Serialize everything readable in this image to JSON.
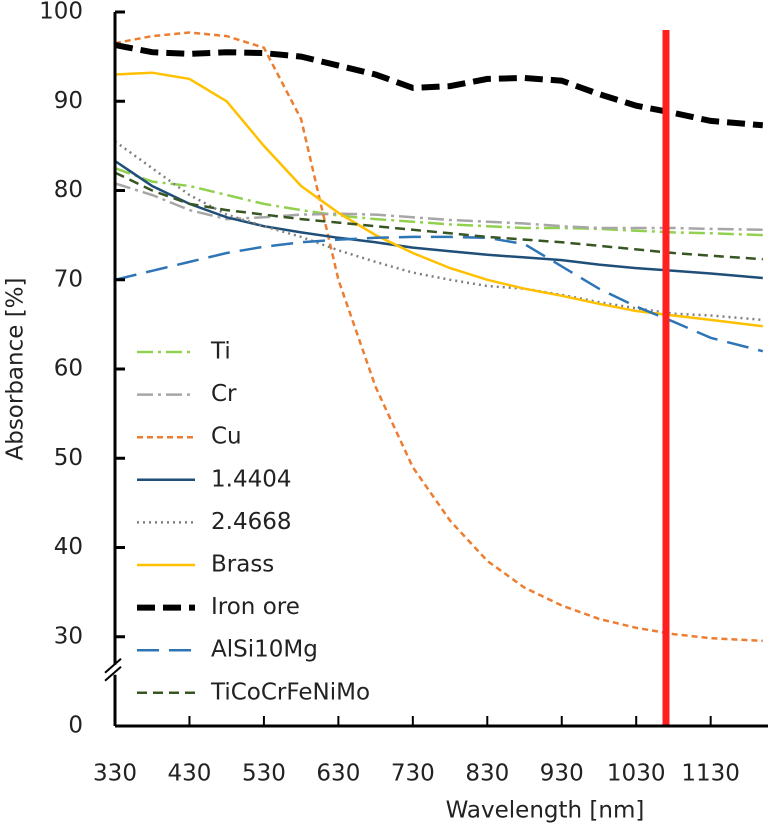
{
  "chart_data": {
    "type": "line",
    "x_label": "Wavelength [nm]",
    "y_label": "Absorbance [%]",
    "x": [
      330,
      380,
      430,
      480,
      530,
      580,
      630,
      680,
      730,
      780,
      830,
      880,
      930,
      980,
      1030,
      1080,
      1130,
      1200
    ],
    "xlim": [
      330,
      1207
    ],
    "xticks": [
      330,
      430,
      530,
      630,
      730,
      830,
      930,
      1030,
      1130
    ],
    "ylim": [
      0,
      100
    ],
    "yticks": [
      0,
      30,
      40,
      50,
      60,
      70,
      80,
      90,
      100
    ],
    "ybreak": [
      0,
      30
    ],
    "legend": "lower left",
    "vline": {
      "x": 1070,
      "color": "#ff2020"
    },
    "series": [
      {
        "name": "Ti",
        "color": "#92d050",
        "dash": "dashdot",
        "values": [
          82.5,
          81,
          80.5,
          79.5,
          78.5,
          77.8,
          77.2,
          76.8,
          76.5,
          76.2,
          76,
          75.8,
          75.8,
          75.7,
          75.5,
          75.3,
          75.2,
          75
        ]
      },
      {
        "name": "Cr",
        "color": "#a6a6a6",
        "dash": "dashdot",
        "values": [
          80.8,
          79.5,
          77.8,
          76.8,
          77,
          77.3,
          77.4,
          77.3,
          77,
          76.7,
          76.5,
          76.3,
          76,
          75.8,
          75.8,
          75.8,
          75.7,
          75.6
        ]
      },
      {
        "name": "Cu",
        "color": "#ed7d31",
        "dash": "short",
        "values": [
          96.5,
          97.3,
          97.7,
          97.3,
          96,
          88,
          70,
          58,
          49,
          43,
          38.5,
          35.5,
          33.5,
          32,
          31,
          30.3,
          29.5,
          28.6
        ]
      },
      {
        "name": "1.4404",
        "color": "#1f4e79",
        "dash": "solid",
        "values": [
          83.3,
          80.5,
          78.5,
          77,
          76,
          75.3,
          74.7,
          74.2,
          73.6,
          73.2,
          72.8,
          72.5,
          72.2,
          71.7,
          71.3,
          71,
          70.7,
          70.2
        ]
      },
      {
        "name": "2.4668",
        "color": "#808080",
        "dash": "dot",
        "values": [
          85.5,
          82.5,
          79.5,
          77.3,
          76,
          74.8,
          73.3,
          72,
          70.8,
          70,
          69.3,
          69,
          68.3,
          67.5,
          66.8,
          66.2,
          66,
          65.5
        ]
      },
      {
        "name": "Brass",
        "color": "#ffc000",
        "dash": "solid",
        "values": [
          93,
          93.2,
          92.5,
          90,
          85,
          80.5,
          77.5,
          75,
          73,
          71.3,
          70,
          69,
          68.2,
          67.3,
          66.5,
          66,
          65.5,
          64.8
        ]
      },
      {
        "name": "Iron ore",
        "color": "#000000",
        "dash": "thick",
        "values": [
          96.3,
          95.5,
          95.3,
          95.5,
          95.4,
          95,
          94,
          93,
          91.5,
          91.7,
          92.5,
          92.6,
          92.3,
          90.8,
          89.5,
          88.7,
          87.8,
          87.3
        ]
      },
      {
        "name": "AlSi10Mg",
        "color": "#2e75b6",
        "dash": "long",
        "values": [
          70,
          71,
          72,
          73,
          73.7,
          74.2,
          74.5,
          74.7,
          74.8,
          74.8,
          74.7,
          74,
          71.5,
          69,
          67,
          65.3,
          63.5,
          62
        ]
      },
      {
        "name": "TiCoCrFeNiMo",
        "color": "#375623",
        "dash": "dash",
        "values": [
          82,
          80,
          78.5,
          77.8,
          77.3,
          76.8,
          76.4,
          76,
          75.6,
          75.2,
          74.8,
          74.5,
          74.2,
          73.8,
          73.4,
          73,
          72.7,
          72.3
        ]
      }
    ]
  }
}
